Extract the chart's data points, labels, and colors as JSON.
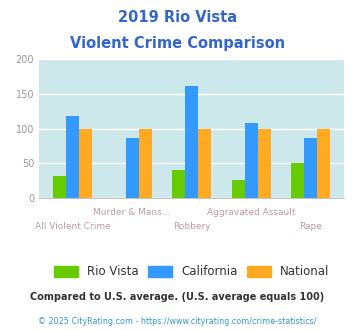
{
  "title_line1": "2019 Rio Vista",
  "title_line2": "Violent Crime Comparison",
  "title_color": "#3366cc",
  "categories": [
    "All Violent Crime",
    "Murder & Mans...",
    "Robbery",
    "Aggravated Assault",
    "Rape"
  ],
  "rio_vista": [
    32,
    0,
    40,
    26,
    51
  ],
  "california": [
    118,
    87,
    162,
    108,
    87
  ],
  "national": [
    100,
    100,
    100,
    100,
    100
  ],
  "colors": {
    "rio_vista": "#66cc00",
    "california": "#3399ff",
    "national": "#ffaa22"
  },
  "ylim": [
    0,
    200
  ],
  "yticks": [
    0,
    50,
    100,
    150,
    200
  ],
  "plot_bg": "#cde8ea",
  "grid_color": "#ffffff",
  "legend_labels": [
    "Rio Vista",
    "California",
    "National"
  ],
  "legend_text_color": "#333333",
  "footnote1": "Compared to U.S. average. (U.S. average equals 100)",
  "footnote2": "© 2025 CityRating.com - https://www.cityrating.com/crime-statistics/",
  "footnote1_color": "#333333",
  "footnote2_color": "#3399cc",
  "xlabel_color": "#bb99aa",
  "ytick_color": "#999999"
}
